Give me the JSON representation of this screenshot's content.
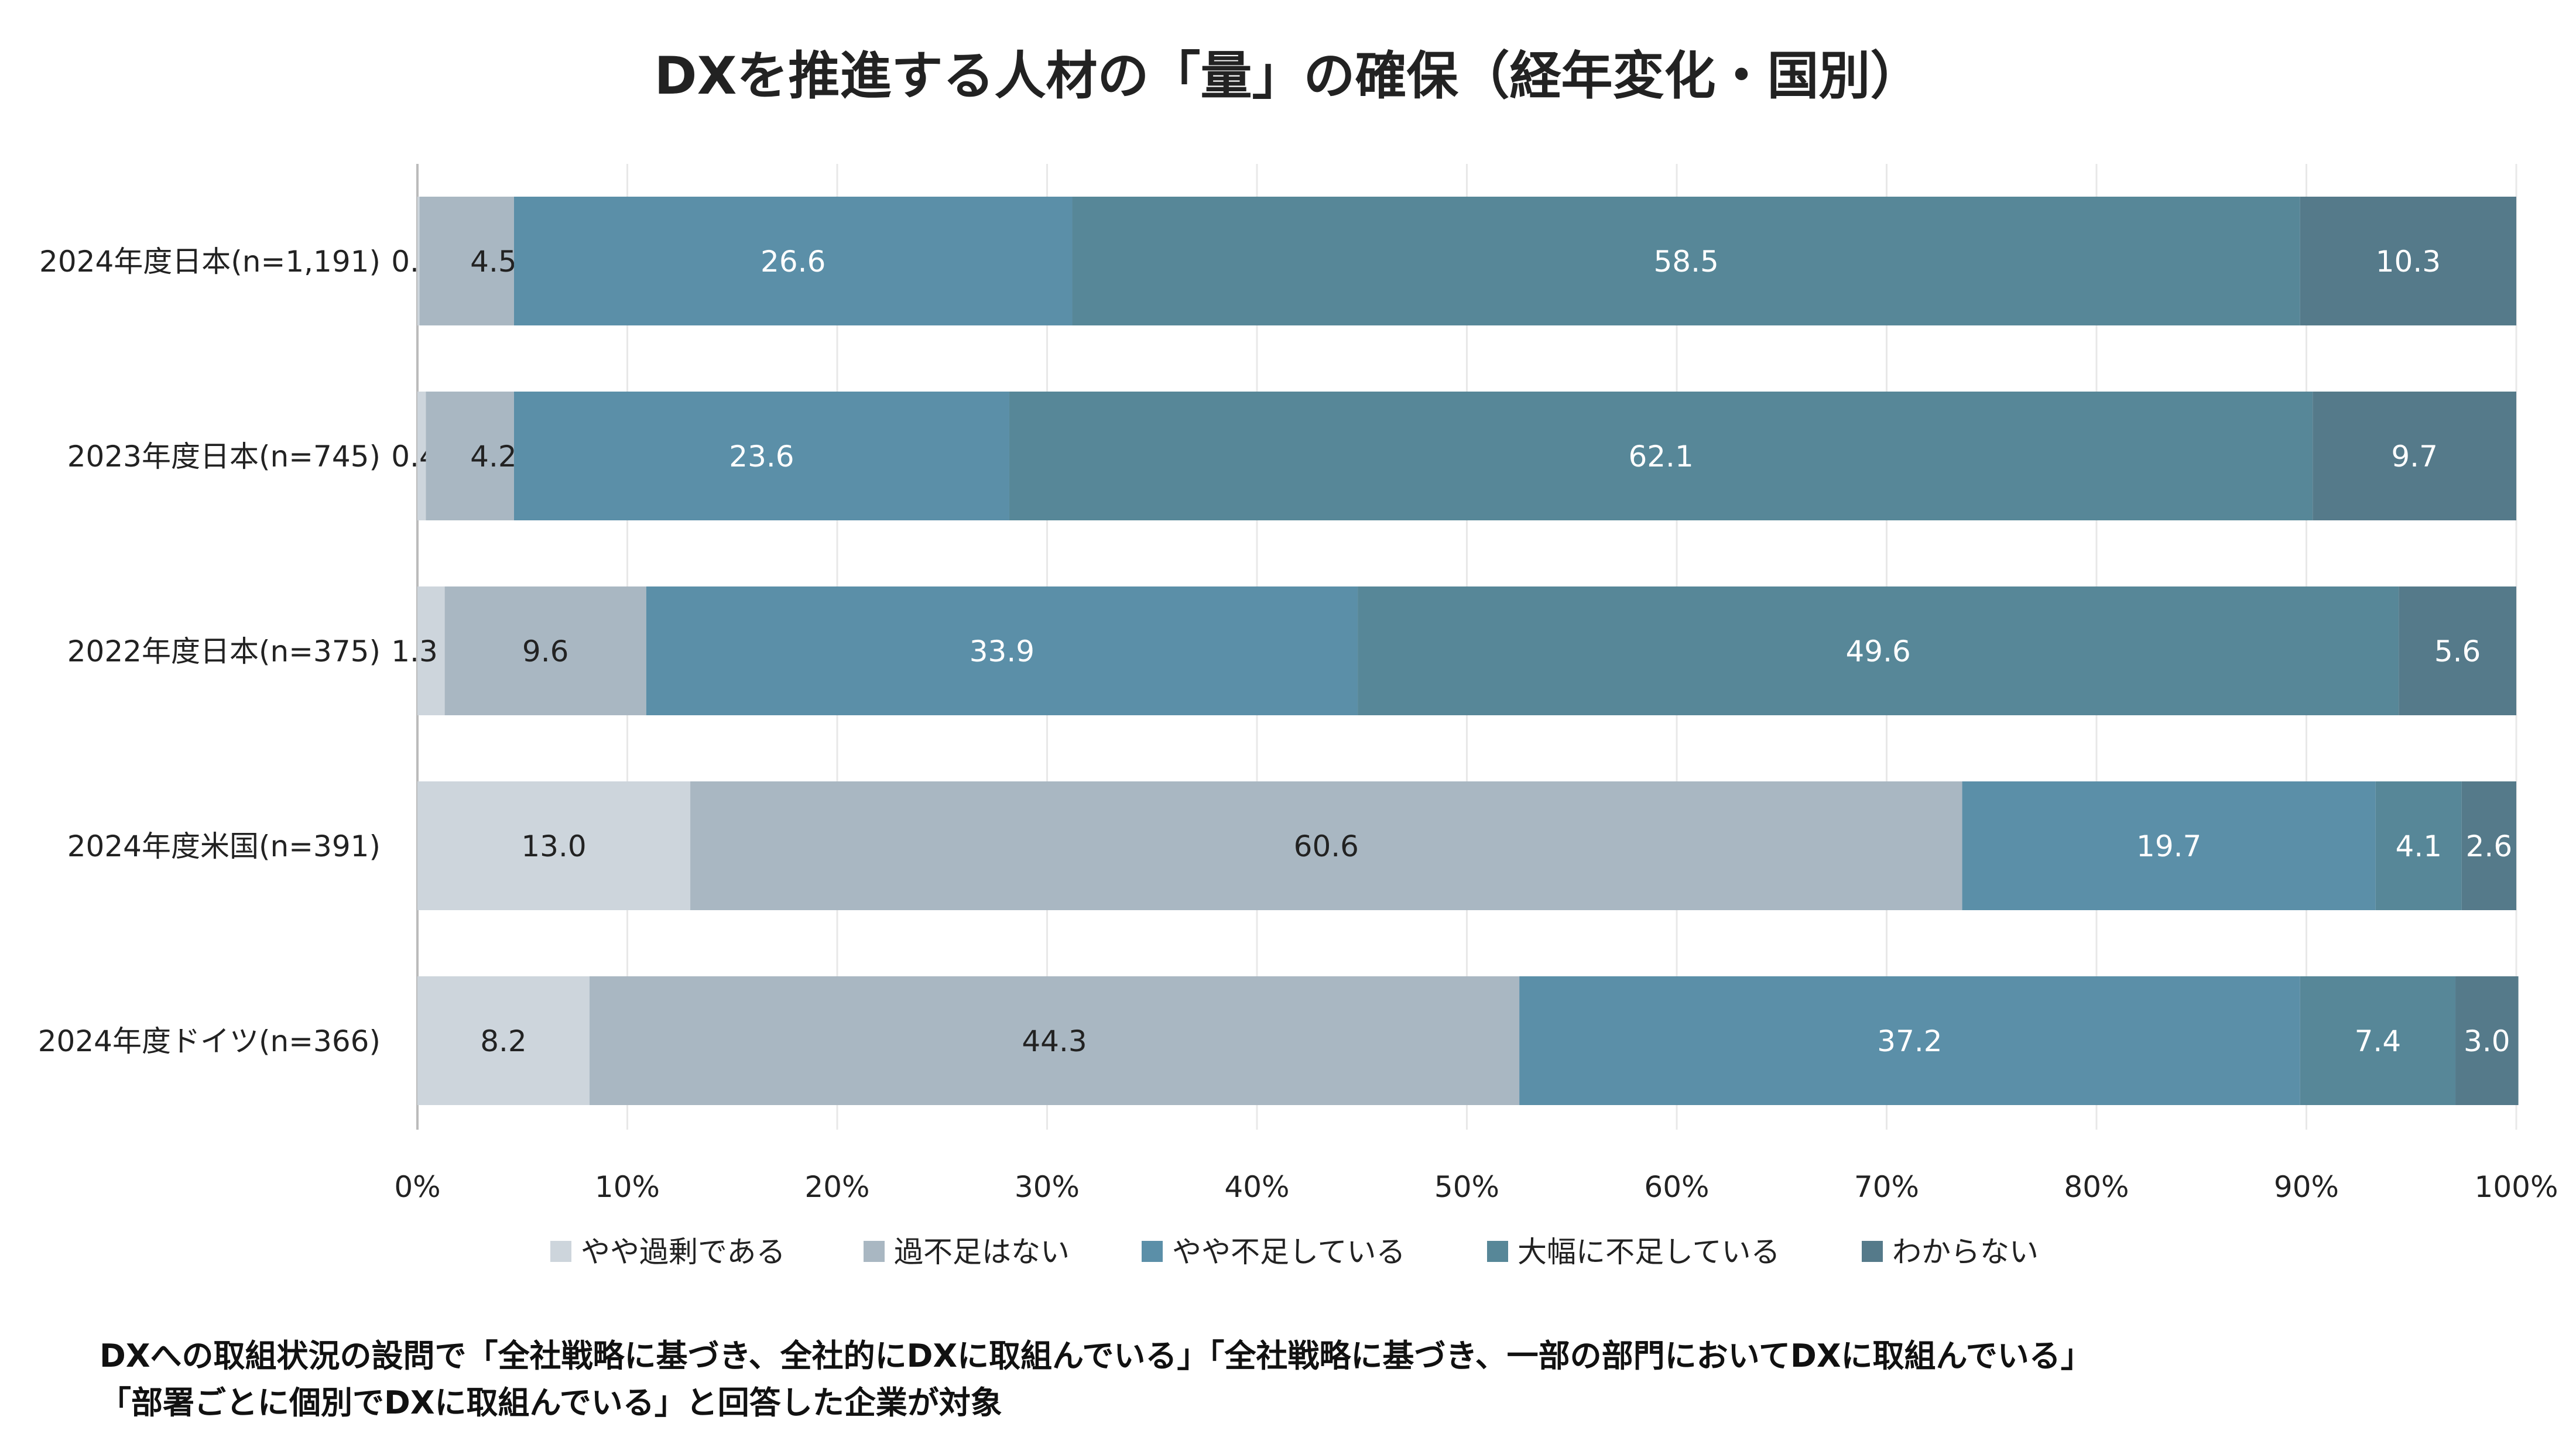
{
  "chart_data": {
    "type": "bar",
    "orientation": "horizontal",
    "stacked": "percent",
    "title": "DXを推進する人材の「量」の確保（経年変化・国別）",
    "categories": [
      "2024年度日本(n=1,191)",
      "2023年度日本(n=745)",
      "2022年度日本(n=375)",
      "2024年度米国(n=391)",
      "2024年度ドイツ(n=366)"
    ],
    "series": [
      {
        "name": "やや過剰である",
        "color": "#cdd5dc",
        "values": [
          0.1,
          0.4,
          1.3,
          13.0,
          8.2
        ],
        "labels": [
          "0.1",
          "0.4",
          "1.3",
          "13.0",
          "8.2"
        ]
      },
      {
        "name": "過不足はない",
        "color": "#a9b7c2",
        "values": [
          4.5,
          4.2,
          9.6,
          60.6,
          44.3
        ],
        "labels": [
          "4.5",
          "4.2",
          "9.6",
          "60.6",
          "44.3"
        ]
      },
      {
        "name": "やや不足している",
        "color": "#5b8fa8",
        "values": [
          26.6,
          23.6,
          33.9,
          19.7,
          37.2
        ],
        "labels": [
          "26.6",
          "23.6",
          "33.9",
          "19.7",
          "37.2"
        ]
      },
      {
        "name": "大幅に不足している",
        "color": "#578798",
        "values": [
          58.5,
          62.1,
          49.6,
          4.1,
          7.4
        ],
        "labels": [
          "58.5",
          "62.1",
          "49.6",
          "4.1",
          "7.4"
        ]
      },
      {
        "name": "わからない",
        "color": "#557a8a",
        "values": [
          10.3,
          9.7,
          5.6,
          2.6,
          3.0
        ],
        "labels": [
          "10.3",
          "9.7",
          "5.6",
          "2.6",
          "3.0"
        ]
      }
    ],
    "xlim": [
      0,
      100
    ],
    "xticks": [
      "0%",
      "10%",
      "20%",
      "30%",
      "40%",
      "50%",
      "60%",
      "70%",
      "80%",
      "90%",
      "100%"
    ],
    "grid": true,
    "legend": "bottom"
  },
  "footnote": [
    "DXへの取組状況の設問で「全社戦略に基づき、全社的にDXに取組んでいる」「全社戦略に基づき、一部の部門においてDXに取組んでいる」",
    "「部署ごとに個別でDXに取組んでいる」と回答した企業が対象"
  ]
}
